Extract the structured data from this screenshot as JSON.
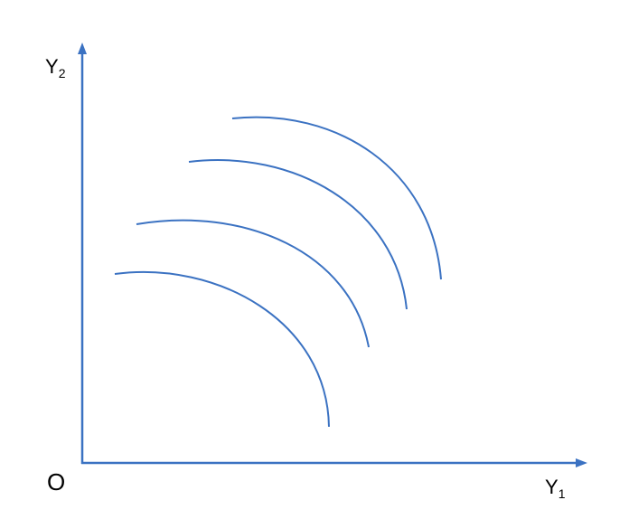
{
  "diagram": {
    "origin_label": "O",
    "y_axis_label": {
      "base": "Y",
      "sub": "2"
    },
    "x_axis_label": {
      "base": "Y",
      "sub": "1"
    },
    "curve_count": 4,
    "colors": {
      "line": "#3b72c2",
      "text": "#000000",
      "background": "#ffffff"
    }
  }
}
